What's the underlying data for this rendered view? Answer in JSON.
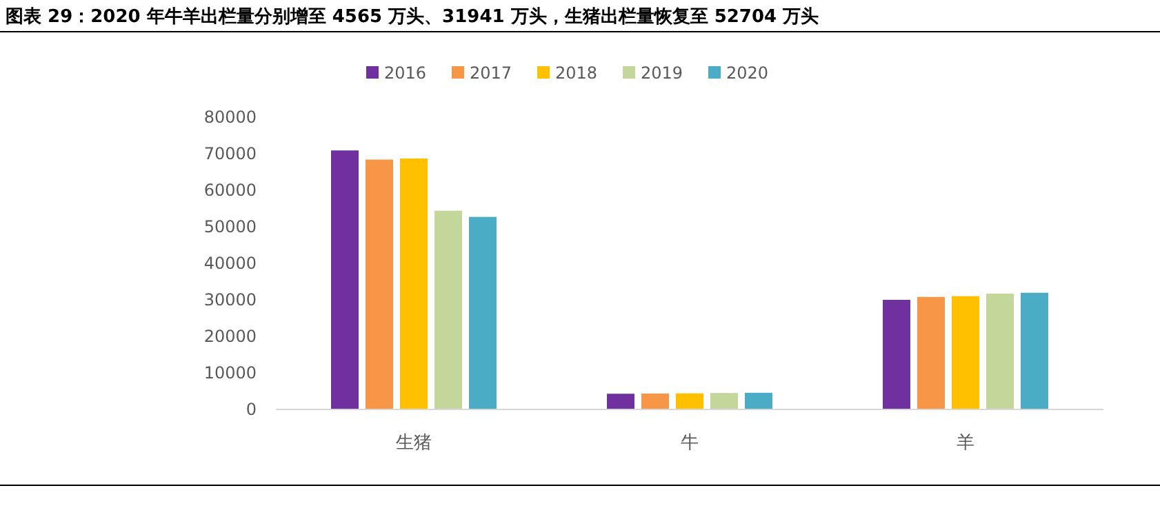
{
  "chart_data": {
    "type": "bar",
    "title": "图表 29：2020 年牛羊出栏量分别增至 4565 万头、31941 万头，生猪出栏量恢复至 52704 万头",
    "categories": [
      "生猪",
      "牛",
      "羊"
    ],
    "series": [
      {
        "name": "2016",
        "color": "#7030a0",
        "values": [
          70900,
          4300,
          30000
        ]
      },
      {
        "name": "2017",
        "color": "#f79646",
        "values": [
          68400,
          4350,
          30800
        ]
      },
      {
        "name": "2018",
        "color": "#ffc000",
        "values": [
          68700,
          4400,
          31000
        ]
      },
      {
        "name": "2019",
        "color": "#c4d79b",
        "values": [
          54400,
          4500,
          31700
        ]
      },
      {
        "name": "2020",
        "color": "#4bacc6",
        "values": [
          52704,
          4565,
          31941
        ]
      }
    ],
    "ylim": [
      0,
      80000
    ],
    "yticks": [
      0,
      10000,
      20000,
      30000,
      40000,
      50000,
      60000,
      70000,
      80000
    ],
    "grid": false,
    "legend": "top"
  }
}
